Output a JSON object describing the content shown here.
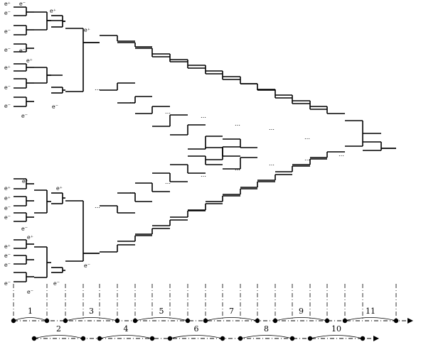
{
  "diagram": {
    "particle_labels": [
      "e⁺",
      "e⁻"
    ],
    "ellipsis": "…",
    "axis_upper": {
      "numbers": [
        "1",
        "3",
        "5",
        "7",
        "9",
        "11"
      ]
    },
    "axis_lower": {
      "numbers": [
        "2",
        "4",
        "6",
        "8",
        "10"
      ]
    },
    "colors": {
      "ink": "#000000",
      "background": "#ffffff"
    }
  }
}
